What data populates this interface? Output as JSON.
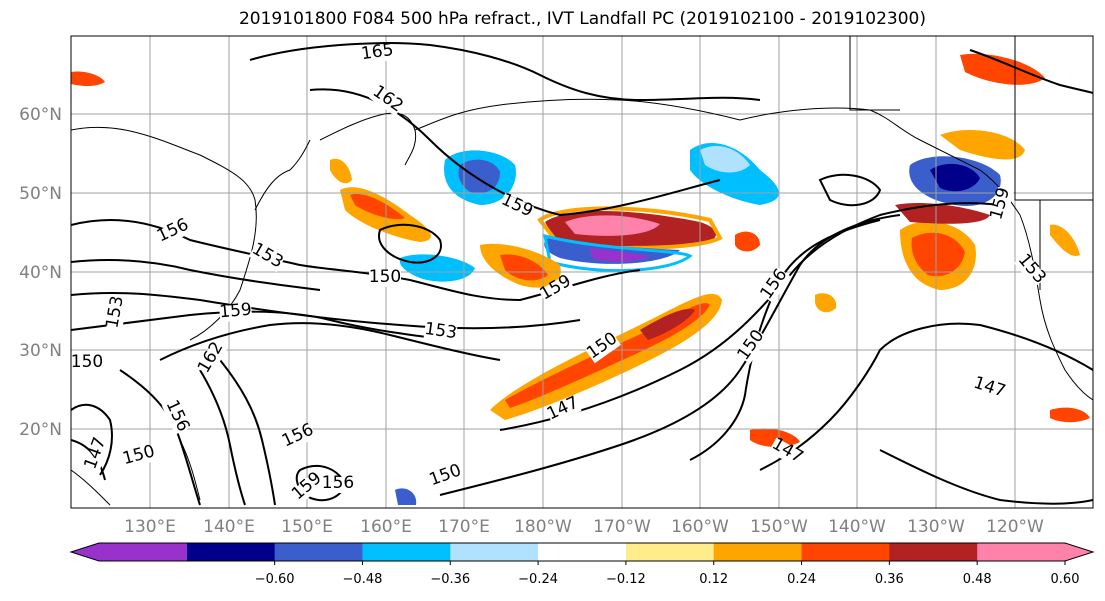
{
  "title": "2019101800 F084 500 hPa refract., IVT Landfall PC (2019102100 - 2019102300)",
  "map": {
    "lon_labels": [
      "130°E",
      "140°E",
      "150°E",
      "160°E",
      "170°E",
      "180°W",
      "170°W",
      "160°W",
      "150°W",
      "140°W",
      "130°W",
      "120°W"
    ],
    "lat_labels": [
      "60°N",
      "50°N",
      "40°N",
      "30°N",
      "20°N"
    ],
    "contour_labels": [
      "165",
      "162",
      "159",
      "156",
      "153",
      "150",
      "159",
      "153",
      "159",
      "162",
      "156",
      "150",
      "147",
      "156",
      "150",
      "147",
      "159",
      "156",
      "150",
      "147",
      "150",
      "153",
      "159",
      "153",
      "150",
      "156",
      "147"
    ]
  },
  "colorbar": {
    "colors": [
      "#9932cc",
      "#00008b",
      "#3a5fcd",
      "#00bfff",
      "#b0e2ff",
      "#ffffff",
      "#ffec8b",
      "#ffa500",
      "#ff4500",
      "#b22222",
      "#ff82ab"
    ],
    "tick_labels": [
      "−0.60",
      "−0.48",
      "−0.36",
      "−0.24",
      "−0.12",
      "0.12",
      "0.24",
      "0.36",
      "0.48",
      "0.60"
    ]
  },
  "colors": {
    "contour": "#000000",
    "grid": "#a0a0a0",
    "coast": "#000000"
  }
}
